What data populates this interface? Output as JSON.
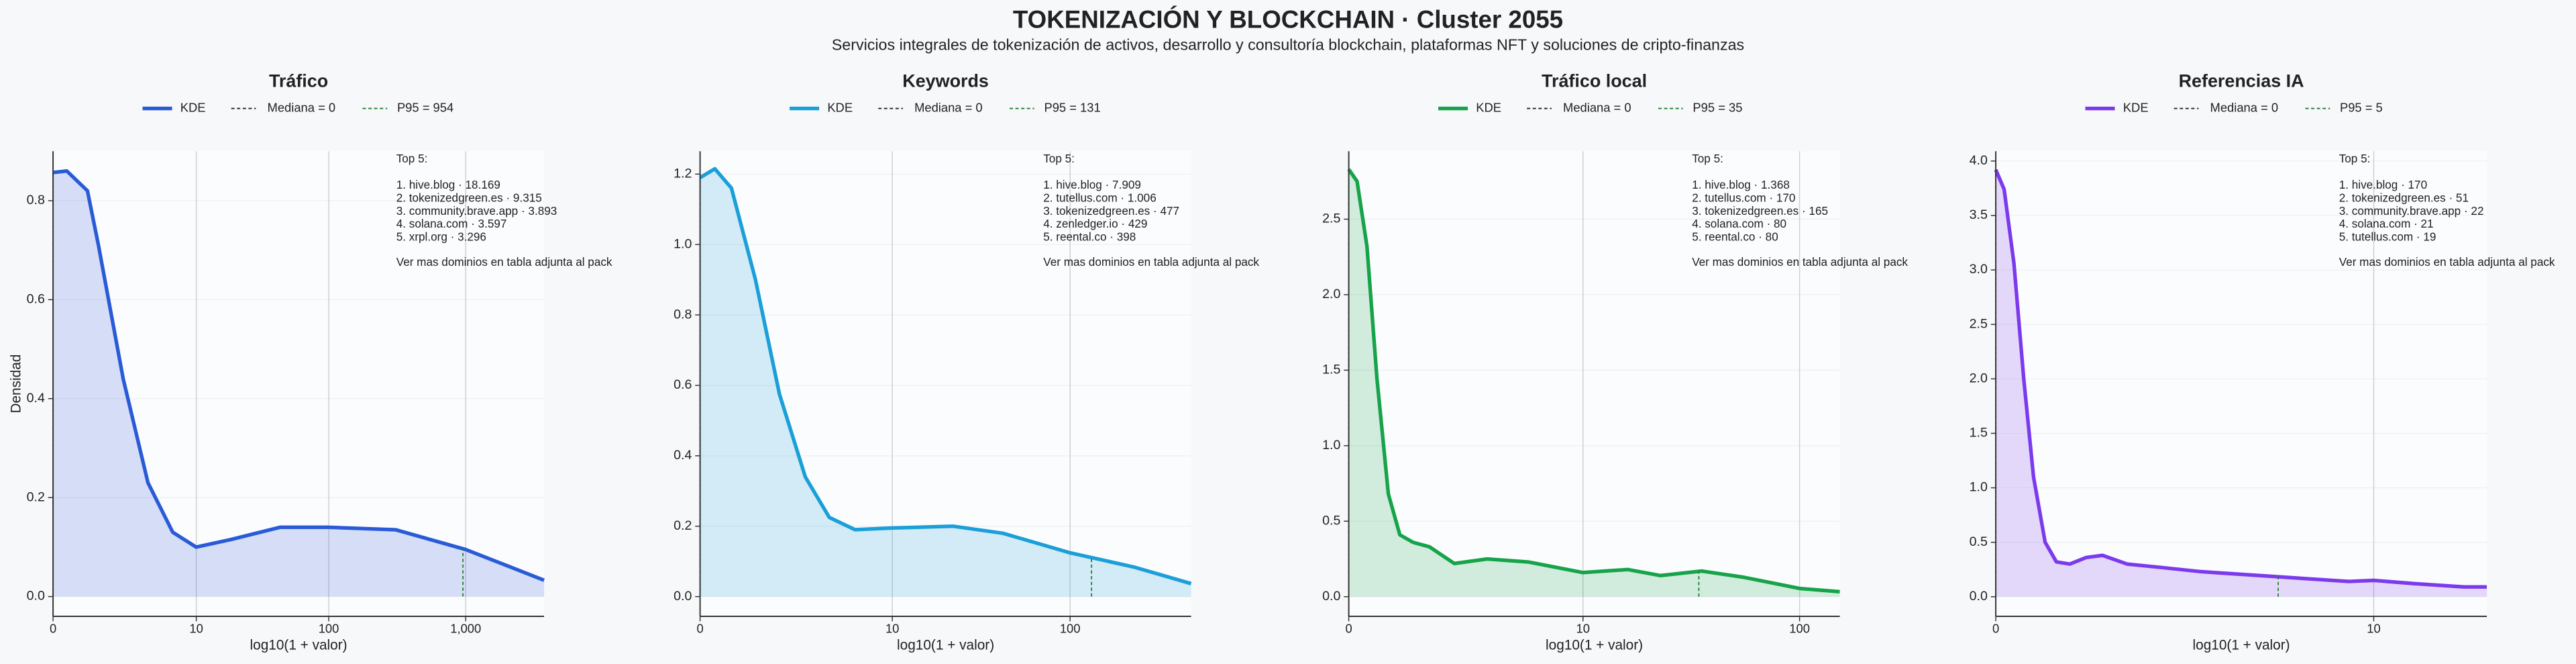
{
  "header": {
    "title": "TOKENIZACIÓN Y BLOCKCHAIN · Cluster 2055",
    "subtitle": "Servicios integrales de tokenización de activos, desarrollo y consultoría blockchain, plataformas NFT y soluciones de cripto‑finanzas"
  },
  "chart_data": [
    {
      "type": "area",
      "title": "Tráfico",
      "xlabel": "log10(1 + valor)",
      "ylabel": "Densidad",
      "grid": true,
      "x": [
        0,
        0.1,
        0.25,
        0.33,
        0.51,
        0.69,
        0.87,
        1.04,
        1.29,
        1.65,
        2.0,
        2.49,
        3.0,
        3.57
      ],
      "series": [
        {
          "name": "KDE",
          "color": "#2a5bd7",
          "values": [
            0.857,
            0.86,
            0.82,
            0.71,
            0.44,
            0.23,
            0.13,
            0.1,
            0.115,
            0.14,
            0.14,
            0.135,
            0.095,
            0.033
          ]
        }
      ],
      "median": {
        "value": 0,
        "label": "Mediana = 0"
      },
      "p95": {
        "value": 954,
        "label": "P95 = 954"
      },
      "xlim": [
        0,
        3.57
      ],
      "ylim": [
        -0.04,
        0.9
      ],
      "xticks": [
        0,
        {
          "value": 1.0414,
          "label": "10"
        },
        {
          "value": 2.0043,
          "label": "100"
        },
        {
          "value": 3.0004,
          "label": "1,000"
        }
      ],
      "yticks": [
        {
          "value": 0,
          "label": "0.0"
        },
        0.2,
        0.4,
        0.6,
        0.8
      ],
      "annotation": {
        "title": "Top 5:",
        "items": [
          "1. hive.blog · 18.169",
          "2. tokenizedgreen.es · 9.315",
          "3. community.brave.app · 3.893",
          "4. solana.com · 3.597",
          "5. xrpl.org · 3.296"
        ],
        "note": "Ver mas dominios en tabla adjunta al pack"
      }
    },
    {
      "type": "area",
      "title": "Keywords",
      "xlabel": "log10(1 + valor)",
      "grid": true,
      "x": [
        0,
        0.08,
        0.17,
        0.3,
        0.43,
        0.57,
        0.7,
        0.84,
        1.04,
        1.37,
        1.64,
        2.0,
        2.35,
        2.66
      ],
      "series": [
        {
          "name": "KDE",
          "color": "#1a9fd9",
          "values": [
            1.19,
            1.215,
            1.16,
            0.9,
            0.575,
            0.34,
            0.225,
            0.19,
            0.195,
            0.2,
            0.18,
            0.125,
            0.084,
            0.037
          ]
        }
      ],
      "median": {
        "value": 0,
        "label": "Mediana = 0"
      },
      "p95": {
        "value": 131,
        "label": "P95 = 131"
      },
      "xlim": [
        0,
        2.66
      ],
      "ylim": [
        -0.056,
        1.265
      ],
      "xticks": [
        0,
        {
          "value": 1.0414,
          "label": "10"
        },
        {
          "value": 2.0043,
          "label": "100"
        }
      ],
      "yticks": [
        {
          "value": 0,
          "label": "0.0"
        },
        0.2,
        0.4,
        0.6,
        0.8,
        {
          "value": 1,
          "label": "1.0"
        },
        1.2
      ],
      "annotation": {
        "title": "Top 5:",
        "items": [
          "1. hive.blog · 7.909",
          "2. tutellus.com · 1.006",
          "3. tokenizedgreen.es · 477",
          "4. zenledger.io · 429",
          "5. reental.co · 398"
        ],
        "note": "Ver mas dominios en tabla adjunta al pack"
      }
    },
    {
      "type": "area",
      "title": "Tráfico local",
      "xlabel": "log10(1 + valor)",
      "grid": true,
      "x": [
        0,
        0.037,
        0.081,
        0.125,
        0.176,
        0.227,
        0.286,
        0.359,
        0.469,
        0.615,
        0.798,
        1.04,
        1.24,
        1.385,
        1.568,
        1.751,
        2.007,
        2.183
      ],
      "series": [
        {
          "name": "KDE",
          "color": "#16a34a",
          "values": [
            2.83,
            2.75,
            2.32,
            1.45,
            0.68,
            0.41,
            0.36,
            0.33,
            0.22,
            0.25,
            0.23,
            0.16,
            0.18,
            0.14,
            0.17,
            0.13,
            0.054,
            0.033
          ]
        }
      ],
      "median": {
        "value": 0,
        "label": "Mediana = 0"
      },
      "p95": {
        "value": 35,
        "label": "P95 = 35"
      },
      "xlim": [
        0,
        2.183
      ],
      "ylim": [
        -0.13,
        2.95
      ],
      "xticks": [
        0,
        {
          "value": 1.0414,
          "label": "10"
        },
        {
          "value": 2.0043,
          "label": "100"
        }
      ],
      "yticks": [
        {
          "value": 0,
          "label": "0.0"
        },
        0.5,
        {
          "value": 1,
          "label": "1.0"
        },
        1.5,
        {
          "value": 2,
          "label": "2.0"
        },
        2.5
      ],
      "annotation": {
        "title": "Top 5:",
        "items": [
          "1. hive.blog · 1.368",
          "2. tutellus.com · 170",
          "3. tokenizedgreen.es · 165",
          "4. solana.com · 80",
          "5. reental.co · 80"
        ],
        "note": "Ver mas dominios en tabla adjunta al pack"
      }
    },
    {
      "type": "area",
      "title": "Referencias IA",
      "xlabel": "log10(1 + valor)",
      "grid": true,
      "x": [
        0,
        0.023,
        0.05,
        0.077,
        0.104,
        0.136,
        0.167,
        0.204,
        0.249,
        0.294,
        0.362,
        0.452,
        0.566,
        0.701,
        0.837,
        0.973,
        1.041,
        1.154,
        1.29,
        1.353
      ],
      "series": [
        {
          "name": "KDE",
          "color": "#7c3aed",
          "values": [
            3.92,
            3.74,
            3.06,
            2.0,
            1.1,
            0.5,
            0.32,
            0.3,
            0.36,
            0.38,
            0.3,
            0.27,
            0.23,
            0.2,
            0.17,
            0.14,
            0.15,
            0.12,
            0.09,
            0.09
          ]
        }
      ],
      "median": {
        "value": 0,
        "label": "Mediana = 0"
      },
      "p95": {
        "value": 5,
        "label": "P95 = 5"
      },
      "xlim": [
        0,
        1.353
      ],
      "ylim": [
        -0.18,
        4.09
      ],
      "xticks": [
        0,
        {
          "value": 1.0414,
          "label": "10"
        }
      ],
      "yticks": [
        {
          "value": 0,
          "label": "0.0"
        },
        0.5,
        {
          "value": 1,
          "label": "1.0"
        },
        1.5,
        {
          "value": 2,
          "label": "2.0"
        },
        2.5,
        {
          "value": 3,
          "label": "3.0"
        },
        3.5,
        {
          "value": 4,
          "label": "4.0"
        }
      ],
      "annotation": {
        "title": "Top 5:",
        "items": [
          "1. hive.blog · 170",
          "2. tokenizedgreen.es · 51",
          "3. community.brave.app · 22",
          "4. solana.com · 21",
          "5. tutellus.com · 19"
        ],
        "note": "Ver mas dominios en tabla adjunta al pack"
      }
    }
  ]
}
